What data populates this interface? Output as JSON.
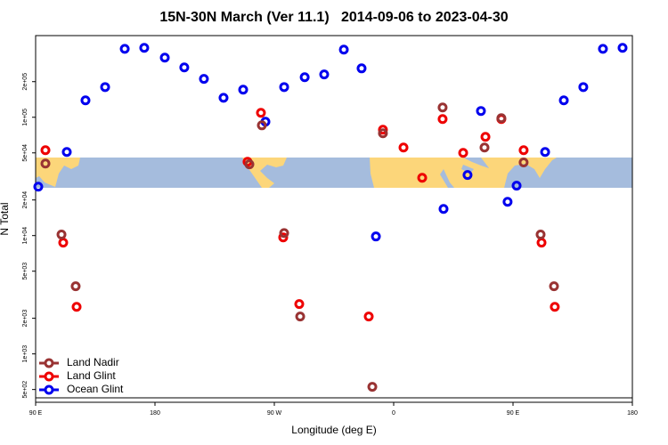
{
  "chart_data": {
    "type": "scatter",
    "title": "15N-30N March (Ver 11.1)   2014-09-06 to 2023-04-30",
    "x_label": "Longitude (deg E)",
    "y_label": "N Total",
    "xlim": [
      90,
      540
    ],
    "xticks": [
      {
        "value": 90,
        "label": "90 E"
      },
      180,
      {
        "value": 270,
        "label": "90 W"
      },
      {
        "value": 360,
        "label": "0"
      },
      {
        "value": 450,
        "label": "90 E"
      },
      {
        "value": 540,
        "label": "180"
      }
    ],
    "ylim": [
      390,
      490000
    ],
    "ylog": true,
    "yticks": [
      {
        "value": 500,
        "label": "5e+02"
      },
      {
        "value": 1000,
        "label": "1e+03"
      },
      {
        "value": 2000,
        "label": "2e+03"
      },
      {
        "value": 5000,
        "label": "5e+03"
      },
      {
        "value": 10000,
        "label": "1e+04"
      },
      {
        "value": 20000,
        "label": "2e+04"
      },
      {
        "value": 50000,
        "label": "5e+04"
      },
      {
        "value": 100000,
        "label": "1e+05"
      },
      {
        "value": 200000,
        "label": "2e+05"
      }
    ],
    "legend": "lower left",
    "series": [
      {
        "name": "Ocean Glint",
        "color": "#0000ee",
        "x": [
          92,
          113.5,
          127.6,
          142.4,
          157.2,
          171.9,
          187.4,
          202.1,
          216.9,
          231.7,
          246.5,
          263.3,
          277.4,
          292.9,
          307.6,
          322.4,
          335.8,
          346.6,
          397.6,
          415.7,
          425.8,
          445.9,
          452.7,
          474.2,
          488.3,
          503,
          517.8,
          532.6
        ],
        "values": [
          25900,
          50900,
          139000,
          180000,
          379000,
          386000,
          319000,
          264000,
          211000,
          146000,
          171000,
          91700,
          180000,
          218000,
          230000,
          373000,
          259000,
          9830,
          16800,
          32500,
          113000,
          19300,
          26400,
          50900,
          139000,
          180000,
          379000,
          386000
        ]
      },
      {
        "name": "Land Glint",
        "color": "#ee0000",
        "x": [
          97.4,
          110.8,
          120.9,
          249.8,
          259.9,
          276.7,
          288.8,
          341.2,
          351.9,
          367.4,
          381.5,
          396.9,
          412.4,
          429.2,
          441.2,
          458,
          471.5,
          481.5
        ],
        "values": [
          52700,
          8710,
          2500,
          42100,
          109000,
          9660,
          2640,
          2070,
          78500,
          55500,
          30800,
          96600,
          50000,
          68300,
          96600,
          52700,
          8710,
          2500
        ]
      },
      {
        "name": "Land Nadir",
        "color": "#993333",
        "x": [
          97.4,
          109.5,
          120.2,
          251.2,
          260.6,
          277.4,
          289.5,
          343.9,
          351.9,
          396.9,
          428.5,
          441.2,
          458,
          470.8,
          480.9
        ],
        "values": [
          40600,
          10200,
          3730,
          40000,
          85500,
          10500,
          2070,
          527,
          73200,
          121000,
          55500,
          98300,
          41500,
          10200,
          3730
        ]
      }
    ]
  }
}
